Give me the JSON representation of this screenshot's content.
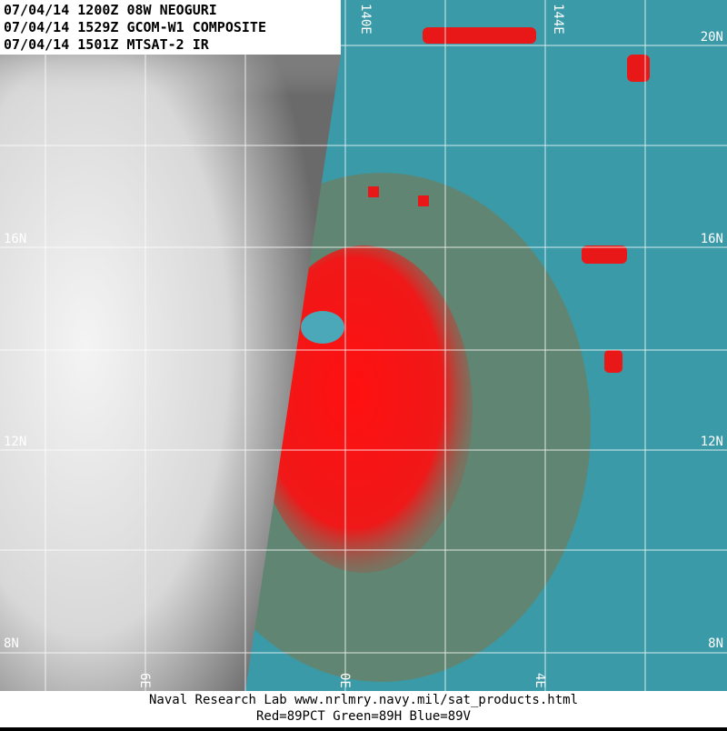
{
  "header": {
    "lines": [
      "07/04/14 1200Z 08W NEOGURI",
      "07/04/14 1529Z GCOM-W1 COMPOSITE",
      "07/04/14 1501Z MTSAT-2 IR"
    ]
  },
  "map": {
    "lat_labels_left": [
      "16N",
      "12N",
      "8N"
    ],
    "lat_labels_right": [
      "20N",
      "16N",
      "12N",
      "8N"
    ],
    "lon_labels_top": [
      "140E",
      "144E"
    ],
    "lon_labels_bottom": [
      "6E",
      "0E",
      "4E"
    ]
  },
  "footer": {
    "lines": [
      "Naval Research Lab  www.nrlmry.navy.mil/sat_products.html",
      "Red=89PCT  Green=89H  Blue=89V"
    ]
  }
}
